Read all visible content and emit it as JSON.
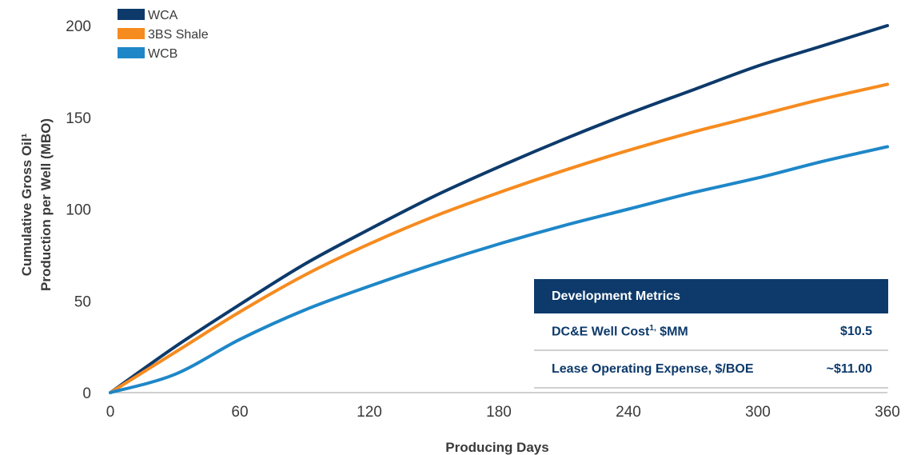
{
  "chart_data": {
    "type": "line",
    "xlabel": "Producing Days",
    "ylabel_line1": "Cumulative Gross Oil¹",
    "ylabel_line2": "Production per Well (MBO)",
    "xlim": [
      0,
      360
    ],
    "ylim": [
      0,
      200
    ],
    "xticks": [
      0,
      60,
      120,
      180,
      240,
      300,
      360
    ],
    "yticks": [
      0,
      50,
      100,
      150,
      200
    ],
    "grid": false,
    "legend_position": "top-left",
    "series": [
      {
        "name": "WCA",
        "color": "#0d3a6b",
        "x": [
          0,
          30,
          60,
          90,
          120,
          150,
          180,
          210,
          240,
          270,
          300,
          330,
          360
        ],
        "y": [
          0,
          25,
          48,
          70,
          89,
          107,
          123,
          138,
          152,
          165,
          178,
          189,
          200
        ]
      },
      {
        "name": "3BS Shale",
        "color": "#f68b1f",
        "x": [
          0,
          30,
          60,
          90,
          120,
          150,
          180,
          210,
          240,
          270,
          300,
          330,
          360
        ],
        "y": [
          0,
          22,
          44,
          64,
          81,
          96,
          109,
          121,
          132,
          142,
          151,
          160,
          168
        ]
      },
      {
        "name": "WCB",
        "color": "#1e87c8",
        "x": [
          0,
          30,
          60,
          90,
          120,
          150,
          180,
          210,
          240,
          270,
          300,
          330,
          360
        ],
        "y": [
          0,
          10,
          29,
          45,
          58,
          70,
          81,
          91,
          100,
          109,
          117,
          126,
          134
        ]
      }
    ]
  },
  "metrics_table": {
    "header": "Development Metrics",
    "rows": [
      {
        "label": "DC&E Well Cost",
        "sup": "1,",
        "unit": " $MM",
        "value": "$10.5"
      },
      {
        "label": "Lease Operating Expense, $/BOE",
        "sup": "",
        "unit": "",
        "value": "~$11.00"
      }
    ]
  },
  "colors": {
    "navy": "#0d3a6b",
    "orange": "#f68b1f",
    "blue": "#1e87c8"
  }
}
